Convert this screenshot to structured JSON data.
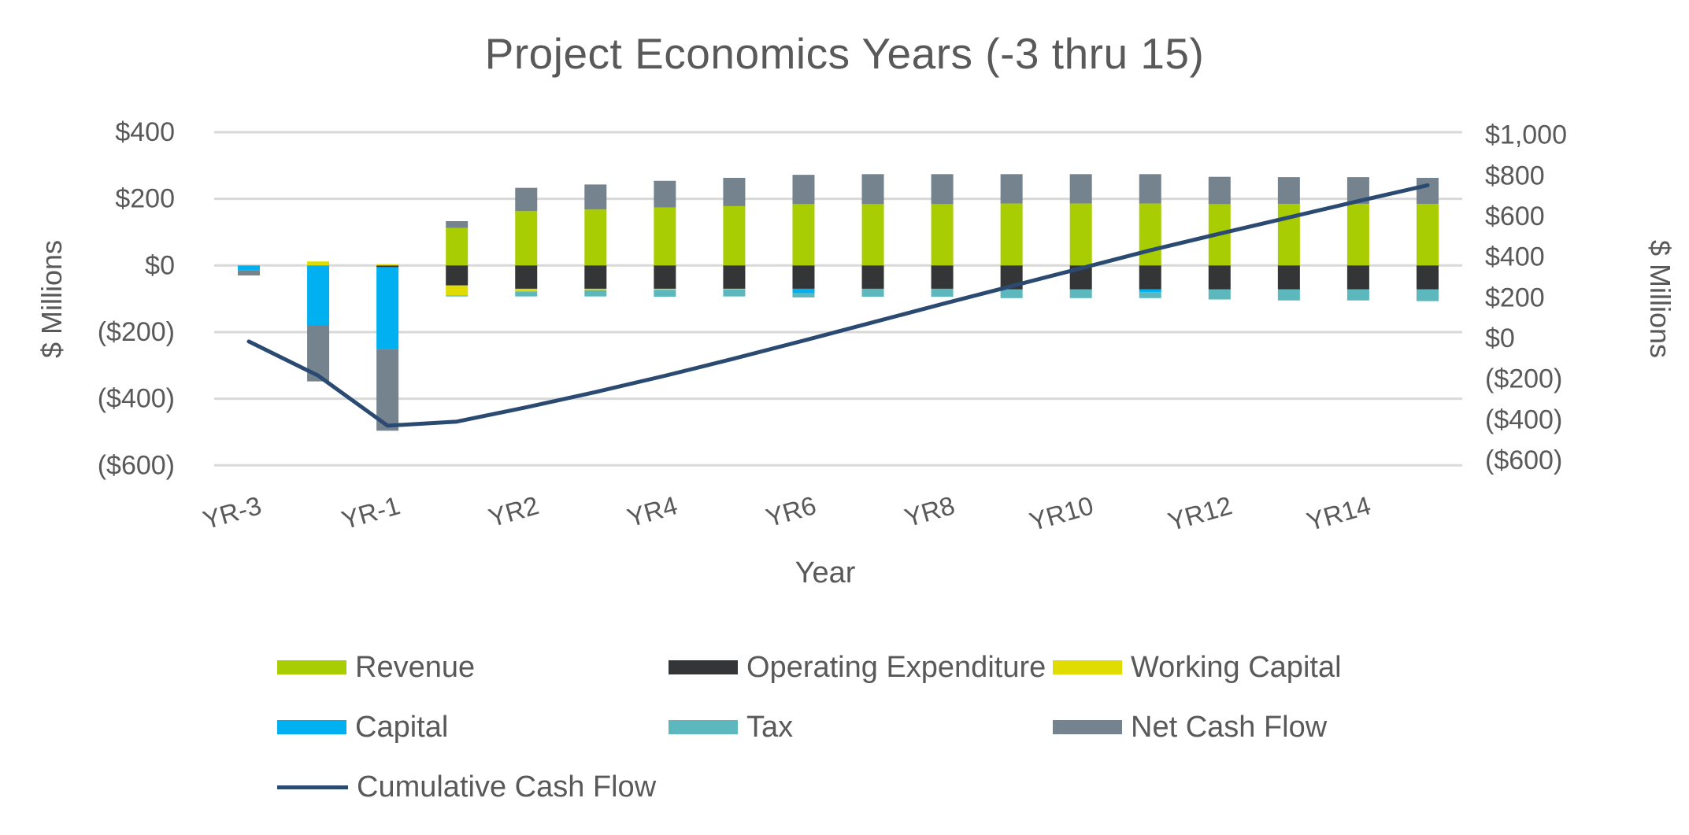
{
  "chart_data": {
    "type": "combo_stacked_bar_line",
    "title": "Project Economics Years (-3 thru 15)",
    "units": "$ Millions",
    "grid": "horizontal light gray gridlines",
    "legend_position": "bottom",
    "x_axis": {
      "title": "Year",
      "categories": [
        "YR-3",
        "YR-2",
        "YR-1",
        "YR1",
        "YR2",
        "YR3",
        "YR4",
        "YR5",
        "YR6",
        "YR7",
        "YR8",
        "YR9",
        "YR10",
        "YR11",
        "YR12",
        "YR13",
        "YR14",
        "YR15"
      ],
      "shown_tick_indices": [
        0,
        2,
        4,
        6,
        8,
        10,
        12,
        14,
        16
      ],
      "shown_tick_labels": [
        "YR-3",
        "YR-1",
        "YR2",
        "YR4",
        "YR6",
        "YR8",
        "YR10",
        "YR12",
        "YR14"
      ]
    },
    "y_axis_left": {
      "title": "$ Millions",
      "tick_labels": [
        "$400",
        "$200",
        "$0",
        "($200)",
        "($400)",
        "($600)"
      ],
      "tick_values": [
        400,
        200,
        0,
        -200,
        -400,
        -600
      ],
      "min": -600,
      "max": 400,
      "step": 200
    },
    "y_axis_right": {
      "title": "$ Millions",
      "tick_labels": [
        "$1,000",
        "$800",
        "$600",
        "$400",
        "$200",
        "$0",
        "($200)",
        "($400)",
        "($600)"
      ],
      "tick_values": [
        1000,
        800,
        600,
        400,
        200,
        0,
        -200,
        -400,
        -600
      ],
      "min": -600,
      "max": 1000,
      "step": 200
    },
    "series": [
      {
        "name": "Revenue",
        "color": "#a8ce03",
        "axis": "left",
        "values": [
          0,
          0,
          0,
          113,
          163,
          168,
          174,
          178,
          184,
          184,
          184,
          186,
          186,
          186,
          184,
          185,
          185,
          185
        ]
      },
      {
        "name": "Operating Expenditure",
        "color": "#333536",
        "axis": "left",
        "values": [
          0,
          0,
          -5,
          -60,
          -70,
          -70,
          -70,
          -70,
          -70,
          -70,
          -70,
          -72,
          -72,
          -72,
          -72,
          -72,
          -72,
          -72
        ]
      },
      {
        "name": "Working Capital",
        "color": "#e0dc00",
        "axis": "left",
        "values": [
          0,
          12,
          4,
          -30,
          -8,
          -4,
          -3,
          -2,
          0,
          0,
          0,
          0,
          0,
          0,
          0,
          0,
          0,
          0
        ]
      },
      {
        "name": "Capital",
        "color": "#00b0f0",
        "axis": "left",
        "values": [
          -15,
          -180,
          -245,
          0,
          0,
          0,
          0,
          0,
          -13,
          0,
          0,
          0,
          0,
          -8,
          0,
          0,
          0,
          0
        ]
      },
      {
        "name": "Tax",
        "color": "#5cb8bd",
        "axis": "left",
        "values": [
          0,
          0,
          0,
          -3,
          -15,
          -19,
          -21,
          -21,
          -13,
          -24,
          -24,
          -26,
          -26,
          -18,
          -30,
          -33,
          -33,
          -35
        ]
      },
      {
        "name": "Net Cash Flow",
        "color": "#75838e",
        "axis": "left",
        "values": [
          -15,
          -168,
          -246,
          20,
          70,
          75,
          80,
          85,
          88,
          90,
          90,
          88,
          88,
          88,
          82,
          80,
          80,
          78
        ]
      }
    ],
    "line_series": {
      "name": "Cumulative Cash Flow",
      "color": "#2a4a72",
      "axis": "right",
      "values": [
        -15,
        -183,
        -429,
        -409,
        -339,
        -264,
        -184,
        -99,
        -11,
        79,
        169,
        257,
        345,
        433,
        515,
        595,
        675,
        753
      ]
    },
    "colors": {
      "text": "#595959",
      "gridline": "#d9d9d9",
      "background": "#ffffff"
    }
  }
}
